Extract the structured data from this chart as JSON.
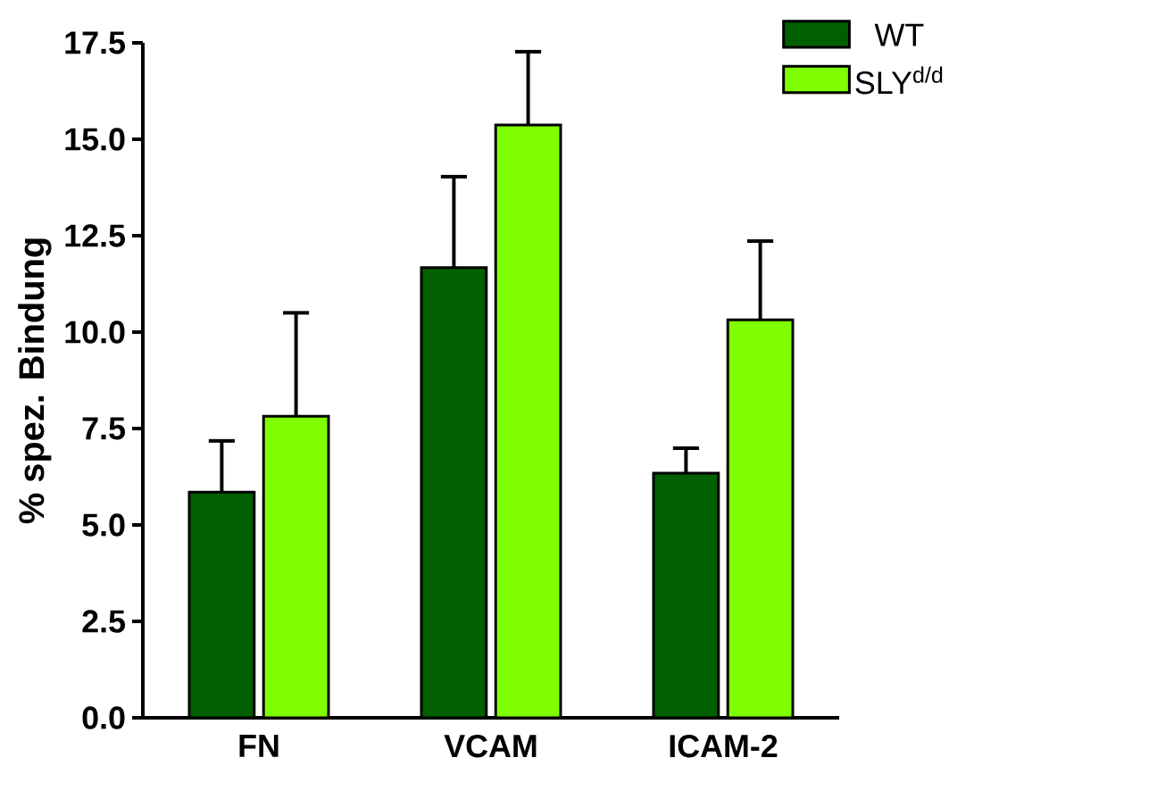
{
  "chart_data": {
    "type": "bar",
    "ylabel": "% spez. Bindung",
    "categories": [
      "FN",
      "VCAM",
      "ICAM-2"
    ],
    "series": [
      {
        "name": "WT",
        "color": "#006000",
        "values": [
          5.85,
          11.67,
          6.34
        ],
        "errors": [
          [
            5.85,
            7.18
          ],
          [
            11.67,
            14.03
          ],
          [
            6.34,
            6.99
          ]
        ]
      },
      {
        "name": "SLY$^{d/d}$",
        "color": "#80ff00",
        "values": [
          7.82,
          15.37,
          10.32
        ],
        "errors": [
          [
            7.82,
            10.5
          ],
          [
            15.37,
            17.27
          ],
          [
            10.32,
            12.36
          ]
        ]
      }
    ],
    "ylim": [
      0,
      17.5
    ],
    "yticks": [
      {
        "value": 0,
        "label": "0.0"
      },
      {
        "value": 2.5,
        "label": "2.5"
      },
      {
        "value": 5,
        "label": "5.0"
      },
      {
        "value": 7.5,
        "label": "7.5"
      },
      {
        "value": 10,
        "label": "10.0"
      },
      {
        "value": 12.5,
        "label": "12.5"
      },
      {
        "value": 15,
        "label": "15.0"
      },
      {
        "value": 17.5,
        "label": "17.5"
      }
    ],
    "legend": "top right",
    "grid": false
  }
}
